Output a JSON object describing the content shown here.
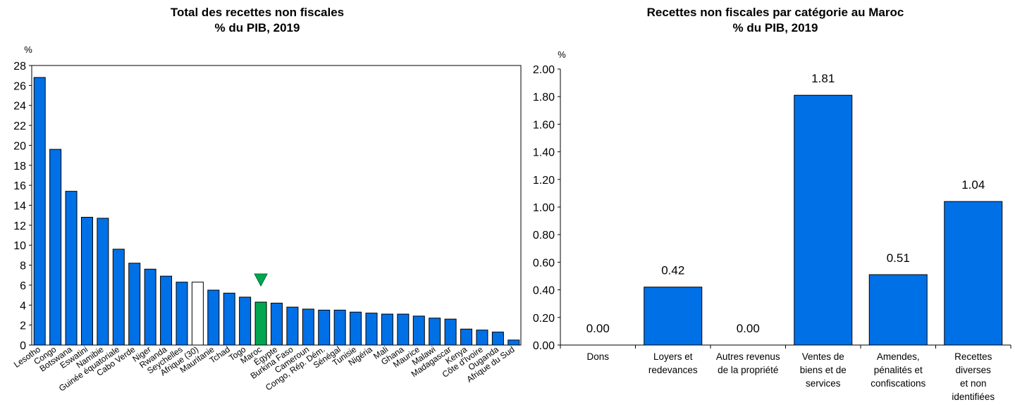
{
  "chart_data": [
    {
      "type": "bar",
      "title": "Total des recettes non fiscales",
      "subtitle": "% du PIB, 2019",
      "ylabel": "%",
      "ylim": [
        0,
        28
      ],
      "yticks": [
        0,
        2,
        4,
        6,
        8,
        10,
        12,
        14,
        16,
        18,
        20,
        22,
        24,
        26,
        28
      ],
      "grid": false,
      "categories": [
        "Lesotho",
        "Congo",
        "Botswana",
        "Eswatini",
        "Namibie",
        "Guinée équatoriale",
        "Cabo Verde",
        "Niger",
        "Rwanda",
        "Seychelles",
        "Afrique (30)",
        "Mauritanie",
        "Tchad",
        "Togo",
        "Maroc",
        "Égypte",
        "Burkina Faso",
        "Cameroun",
        "Congo, Rép. Dém.",
        "Sénégal",
        "Tunisie",
        "Nigéria",
        "Mali",
        "Ghana",
        "Maurice",
        "Malawi",
        "Madagascar",
        "Kenya",
        "Côte d'Ivoire",
        "Ouganda",
        "Afrique du Sud"
      ],
      "values": [
        26.8,
        19.6,
        15.4,
        12.8,
        12.7,
        9.6,
        8.2,
        7.6,
        6.9,
        6.3,
        6.3,
        5.5,
        5.2,
        4.8,
        4.3,
        4.2,
        3.8,
        3.6,
        3.5,
        3.5,
        3.3,
        3.2,
        3.1,
        3.1,
        2.9,
        2.7,
        2.6,
        1.6,
        1.5,
        1.3,
        0.5
      ],
      "highlight": {
        "Afrique (30)": "#ffffff",
        "Maroc": "#00a650"
      },
      "marker": {
        "category": "Maroc",
        "shape": "triangle-down",
        "color": "#00a650"
      },
      "bar_color": "#0070e6"
    },
    {
      "type": "bar",
      "title": "Recettes non fiscales par catégorie au Maroc",
      "subtitle": "% du PIB, 2019",
      "ylabel": "%",
      "ylim": [
        0,
        2
      ],
      "yticks": [
        "0.00",
        "0.20",
        "0.40",
        "0.60",
        "0.80",
        "1.00",
        "1.20",
        "1.40",
        "1.60",
        "1.80",
        "2.00"
      ],
      "grid": false,
      "categories": [
        [
          "Dons"
        ],
        [
          "Loyers et",
          "redevances"
        ],
        [
          "Autres revenus",
          "de la propriété"
        ],
        [
          "Ventes de",
          "biens et de",
          "services"
        ],
        [
          "Amendes,",
          "pénalités et",
          "confiscations"
        ],
        [
          "Recettes",
          "diverses",
          "et non",
          "identifiées"
        ]
      ],
      "values": [
        0.0,
        0.42,
        0.0,
        1.81,
        0.51,
        1.04
      ],
      "data_labels": [
        "0.00",
        "0.42",
        "0.00",
        "1.81",
        "0.51",
        "1.04"
      ],
      "bar_color": "#0070e6"
    }
  ]
}
